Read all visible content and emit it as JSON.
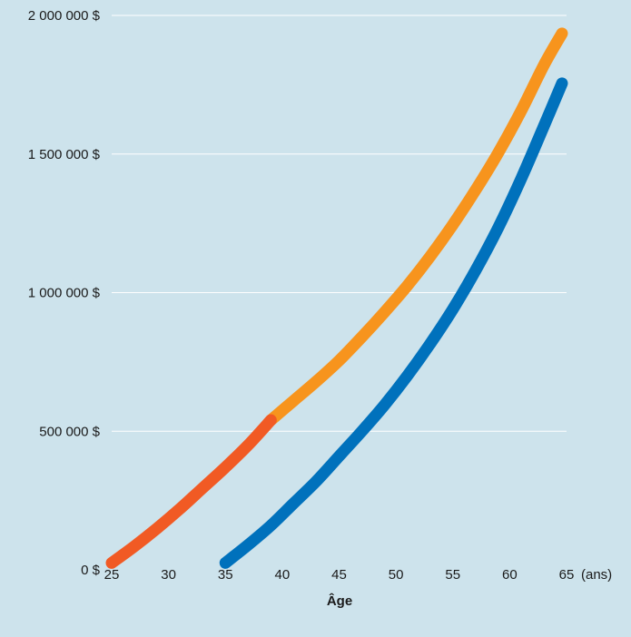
{
  "chart_data": {
    "type": "line",
    "title": "",
    "xlabel": "Âge",
    "x_unit_label": "(ans)",
    "ylabel": "",
    "xlim": [
      25,
      65
    ],
    "ylim": [
      0,
      2000000
    ],
    "x_ticks": [
      25,
      30,
      35,
      40,
      45,
      50,
      55,
      60,
      65
    ],
    "x_tick_labels": [
      "25",
      "30",
      "35",
      "40",
      "45",
      "50",
      "55",
      "60",
      "65"
    ],
    "y_ticks": [
      0,
      500000,
      1000000,
      1500000,
      2000000
    ],
    "y_tick_labels": [
      "0 $",
      "500 000 $",
      "1 000 000 $",
      "1 500 000 $",
      "2 000 000 $"
    ],
    "grid": "horizontal",
    "legend": "none",
    "colors": {
      "background": "#cde3ec",
      "grid": "#ffffff",
      "early_saver": "#f15a24",
      "early_saver_continued": "#f7941d",
      "late_saver": "#0071bc"
    },
    "series": [
      {
        "color": "#f15a24",
        "x": [
          25,
          27,
          29,
          31,
          33,
          35,
          37,
          39
        ],
        "y": [
          25000,
          85000,
          150000,
          220000,
          295000,
          370000,
          450000,
          540000
        ]
      },
      {
        "color": "#f7941d",
        "x": [
          39,
          41,
          43,
          45,
          47,
          49,
          51,
          53,
          55,
          57,
          59,
          61,
          63,
          64.6
        ],
        "y": [
          540000,
          610000,
          680000,
          755000,
          840000,
          930000,
          1025000,
          1130000,
          1245000,
          1370000,
          1505000,
          1655000,
          1820000,
          1935000
        ]
      },
      {
        "color": "#0071bc",
        "x": [
          35,
          37,
          39,
          41,
          43,
          45,
          47,
          49,
          51,
          53,
          55,
          57,
          59,
          61,
          63,
          64.6
        ],
        "y": [
          25000,
          90000,
          160000,
          240000,
          320000,
          410000,
          500000,
          595000,
          700000,
          815000,
          940000,
          1080000,
          1235000,
          1410000,
          1600000,
          1755000
        ]
      }
    ]
  }
}
